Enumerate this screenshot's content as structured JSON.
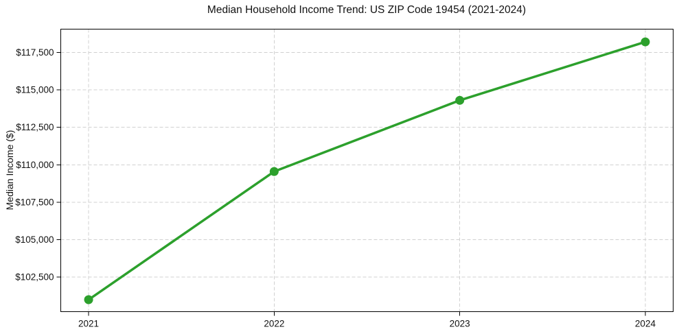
{
  "chart_data": {
    "type": "line",
    "title": "Median Household Income Trend: US ZIP Code 19454 (2021-2024)",
    "xlabel": "",
    "ylabel": "Median Income ($)",
    "x": [
      2021,
      2022,
      2023,
      2024
    ],
    "categories": [
      "2021",
      "2022",
      "2023",
      "2024"
    ],
    "values": [
      101000,
      109550,
      114300,
      118200
    ],
    "x_ticks": [
      {
        "value": 2021,
        "label": "2021"
      },
      {
        "value": 2022,
        "label": "2022"
      },
      {
        "value": 2023,
        "label": "2023"
      },
      {
        "value": 2024,
        "label": "2024"
      }
    ],
    "y_ticks": [
      {
        "value": 102500,
        "label": "$102,500"
      },
      {
        "value": 105000,
        "label": "$105,000"
      },
      {
        "value": 107500,
        "label": "$107,500"
      },
      {
        "value": 110000,
        "label": "$110,000"
      },
      {
        "value": 112500,
        "label": "$112,500"
      },
      {
        "value": 115000,
        "label": "$115,000"
      },
      {
        "value": 117500,
        "label": "$117,500"
      }
    ],
    "xlim": [
      2020.85,
      2024.15
    ],
    "ylim": [
      100200,
      119050
    ],
    "grid": true,
    "grid_style": "dashed",
    "legend": false,
    "line_color": "#2ca02c",
    "marker": "circle",
    "grid_color": "#d0d0d0",
    "axis_color": "#000000",
    "text_color": "#111111"
  }
}
